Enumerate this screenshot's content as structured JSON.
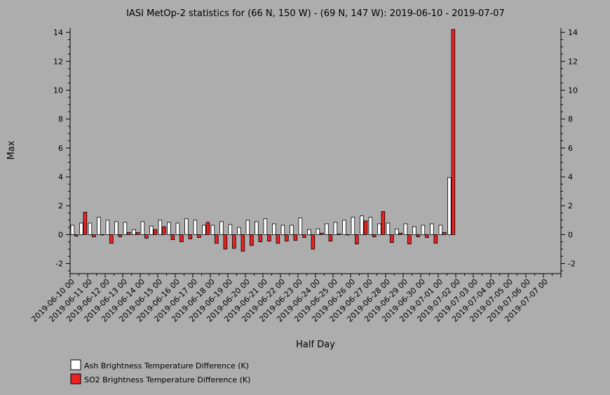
{
  "chart_data": {
    "type": "bar",
    "title": "IASI MetOp-2 statistics for (66 N, 150 W) - (69 N, 147 W): 2019-06-10 - 2019-07-07",
    "xlabel": "Half Day",
    "ylabel": "Max",
    "ylim": [
      -2.7,
      14.3
    ],
    "yticks": [
      -2,
      0,
      2,
      4,
      6,
      8,
      10,
      12,
      14
    ],
    "grid": false,
    "legend_position": "bottom-left",
    "categories": [
      "2019-06-10 00",
      "2019-06-10 12",
      "2019-06-11 00",
      "2019-06-11 12",
      "2019-06-12 00",
      "2019-06-12 12",
      "2019-06-13 00",
      "2019-06-13 12",
      "2019-06-14 00",
      "2019-06-14 12",
      "2019-06-15 00",
      "2019-06-15 12",
      "2019-06-16 00",
      "2019-06-16 12",
      "2019-06-17 00",
      "2019-06-17 12",
      "2019-06-18 00",
      "2019-06-18 12",
      "2019-06-19 00",
      "2019-06-19 12",
      "2019-06-20 00",
      "2019-06-20 12",
      "2019-06-21 00",
      "2019-06-21 12",
      "2019-06-22 00",
      "2019-06-22 12",
      "2019-06-23 00",
      "2019-06-23 12",
      "2019-06-24 00",
      "2019-06-24 12",
      "2019-06-25 00",
      "2019-06-25 12",
      "2019-06-26 00",
      "2019-06-26 12",
      "2019-06-27 00",
      "2019-06-27 12",
      "2019-06-28 00",
      "2019-06-28 12",
      "2019-06-29 00",
      "2019-06-29 12",
      "2019-06-30 00",
      "2019-06-30 12",
      "2019-07-01 00",
      "2019-07-01 12",
      "2019-07-02 00",
      "2019-07-02 12",
      "2019-07-03 00",
      "2019-07-03 12",
      "2019-07-04 00",
      "2019-07-04 12",
      "2019-07-05 00",
      "2019-07-05 12",
      "2019-07-06 00",
      "2019-07-06 12",
      "2019-07-07 00",
      "2019-07-07 12"
    ],
    "xtick_labels": [
      "2019-06-10 00",
      "2019-06-11 00",
      "2019-06-12 00",
      "2019-06-13 00",
      "2019-06-14 00",
      "2019-06-15 00",
      "2019-06-16 00",
      "2019-06-17 00",
      "2019-06-18 00",
      "2019-06-19 00",
      "2019-06-20 00",
      "2019-06-21 00",
      "2019-06-22 00",
      "2019-06-23 00",
      "2019-06-24 00",
      "2019-06-25 00",
      "2019-06-26 00",
      "2019-06-27 00",
      "2019-06-28 00",
      "2019-06-29 00",
      "2019-06-30 00",
      "2019-07-01 00",
      "2019-07-02 00",
      "2019-07-03 00",
      "2019-07-04 00",
      "2019-07-05 00",
      "2019-07-06 00",
      "2019-07-07 00"
    ],
    "series": [
      {
        "name": "Ash Brightness Temperature Difference (K)",
        "color": "#ffffff",
        "values": [
          0.65,
          0.8,
          0.8,
          1.2,
          1.0,
          0.9,
          0.85,
          0.35,
          0.9,
          0.6,
          1.0,
          0.85,
          0.8,
          1.1,
          1.0,
          0.65,
          0.65,
          0.9,
          0.7,
          0.5,
          1.0,
          0.9,
          1.1,
          0.75,
          0.65,
          0.65,
          1.15,
          0.35,
          0.4,
          0.75,
          0.85,
          1.0,
          1.2,
          1.3,
          1.2,
          0.75,
          0.8,
          0.4,
          0.75,
          0.55,
          0.65,
          0.75,
          0.65,
          3.95,
          null,
          null,
          null,
          null,
          null,
          null,
          null,
          null,
          null,
          null,
          null,
          null
        ]
      },
      {
        "name": "SO2 Brightness Temperature Difference (K)",
        "color": "#ee2222",
        "values": [
          -0.1,
          1.55,
          -0.15,
          0.0,
          -0.6,
          -0.15,
          0.15,
          0.15,
          -0.25,
          0.35,
          0.55,
          -0.35,
          -0.5,
          -0.3,
          -0.2,
          0.85,
          -0.6,
          -1.0,
          -0.95,
          -1.15,
          -0.75,
          -0.5,
          -0.45,
          -0.6,
          -0.45,
          -0.4,
          -0.2,
          -1.0,
          0.1,
          -0.45,
          0.05,
          0.0,
          -0.65,
          0.95,
          -0.15,
          1.6,
          -0.55,
          0.1,
          -0.65,
          -0.15,
          -0.2,
          -0.6,
          0.15,
          14.2,
          null,
          null,
          null,
          null,
          null,
          null,
          null,
          null,
          null,
          null,
          null,
          null
        ]
      }
    ]
  }
}
